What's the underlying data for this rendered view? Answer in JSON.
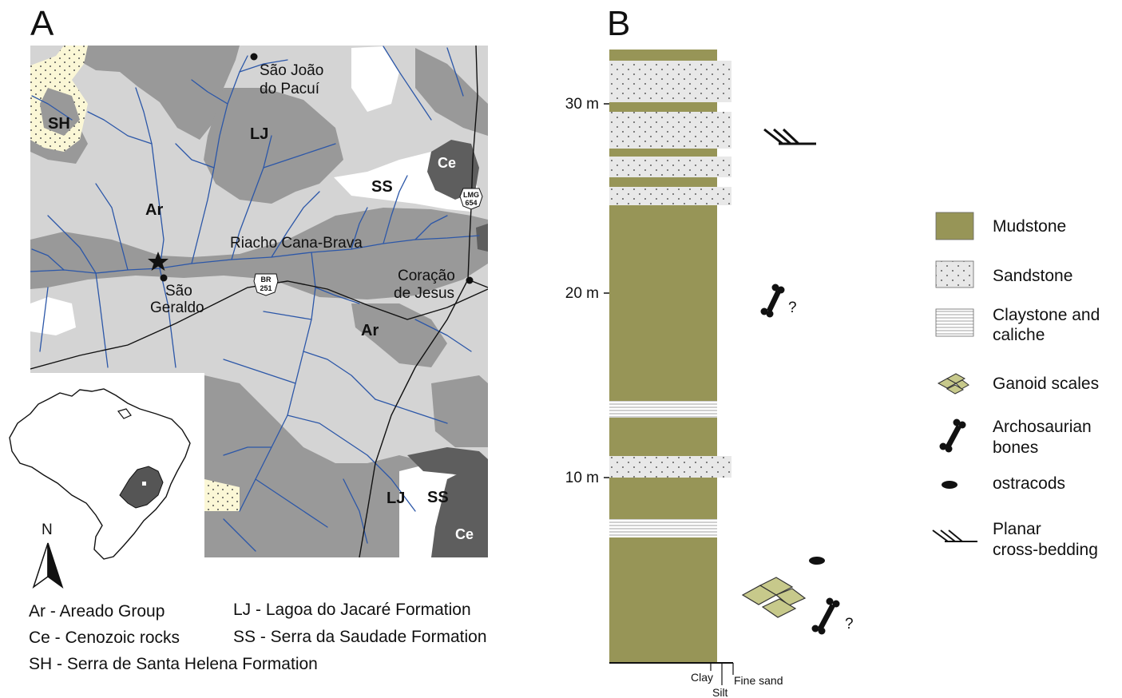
{
  "panels": {
    "a": "A",
    "b": "B"
  },
  "map": {
    "labels": {
      "sao_joao": [
        "São João",
        "do Pacuí"
      ],
      "sh": "SH",
      "lj_north": "LJ",
      "ce_east": "Ce",
      "ss_north": "SS",
      "ar_west": "Ar",
      "riacho": "Riacho Cana-Brava",
      "sao_geraldo": [
        "São",
        "Geraldo"
      ],
      "coracao": [
        "Coração",
        "de Jesus"
      ],
      "ar_center": "Ar",
      "lj_south": "LJ",
      "ss_south": "SS",
      "ce_south": "Ce"
    },
    "roads": {
      "lmg": [
        "LMG",
        "654"
      ],
      "br": [
        "BR",
        "251"
      ]
    },
    "north": "N",
    "colors": {
      "ar": "#d4d4d4",
      "lj": "#999999",
      "ce": "#5e5e5e",
      "ss": "#ffffff",
      "sh": "#fbf7d6",
      "river": "#2c57a8",
      "state_highlight": "#555555"
    }
  },
  "map_legend": {
    "ar": "Ar - Areado Group",
    "ce": "Ce - Cenozoic rocks",
    "sh": "SH - Serra de Santa Helena Formation",
    "lj": "LJ - Lagoa do Jacaré Formation",
    "ss": "SS - Serra da Saudade Formation"
  },
  "column": {
    "ticks": [
      "30 m",
      "20 m",
      "10 m"
    ],
    "grain": {
      "clay": "Clay",
      "silt": "Silt",
      "fine_sand": "Fine sand"
    },
    "question_marks": [
      "?",
      "?"
    ],
    "colors": {
      "mudstone": "#979557",
      "sandstone": "#e8e8e8",
      "scales": "#c7c98b"
    }
  },
  "legend": {
    "mudstone": "Mudstone",
    "sandstone": "Sandstone",
    "claystone": [
      "Claystone and",
      "caliche"
    ],
    "ganoid": "Ganoid scales",
    "bones": [
      "Archosaurian",
      "bones"
    ],
    "ostracods": "ostracods",
    "crossbed": [
      "Planar",
      "cross-bedding"
    ]
  }
}
